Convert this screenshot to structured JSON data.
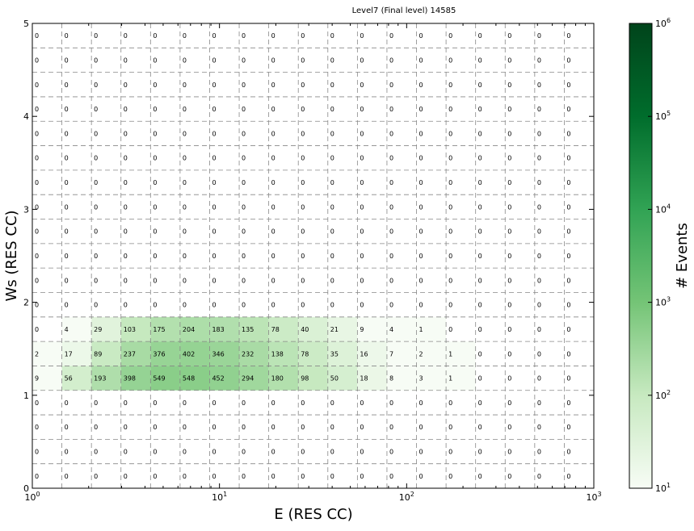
{
  "chart_data": {
    "type": "heatmap",
    "title": "Level7 (Final level) 14585",
    "xlabel": "E (RES CC)",
    "ylabel": "Ws (RES CC)",
    "xscale": "log",
    "xlim": [
      1,
      1000
    ],
    "ylim": [
      0,
      5
    ],
    "x_ticks": [
      {
        "value": 1,
        "base": "10",
        "exp": "0"
      },
      {
        "value": 10,
        "base": "10",
        "exp": "1"
      },
      {
        "value": 100,
        "base": "10",
        "exp": "2"
      },
      {
        "value": 1000,
        "base": "10",
        "exp": "3"
      }
    ],
    "y_ticks": [
      "0",
      "1",
      "2",
      "3",
      "4",
      "5"
    ],
    "grid": true,
    "colorbar": {
      "label": "# Events",
      "scale": "log",
      "range": [
        10,
        1000000
      ],
      "ticks": [
        {
          "value": 10,
          "base": "10",
          "exp": "1"
        },
        {
          "value": 100,
          "base": "10",
          "exp": "2"
        },
        {
          "value": 1000,
          "base": "10",
          "exp": "3"
        },
        {
          "value": 10000,
          "base": "10",
          "exp": "4"
        },
        {
          "value": 100000,
          "base": "10",
          "exp": "5"
        },
        {
          "value": 1000000,
          "base": "10",
          "exp": "6"
        }
      ],
      "colors": [
        "#f7fcf5",
        "#c7e9c0",
        "#74c476",
        "#31a354",
        "#006d2c",
        "#00441b"
      ]
    },
    "nx": 19,
    "ny": 19,
    "cells": [
      [
        9,
        56,
        193,
        398,
        549,
        548,
        452,
        294,
        180,
        98,
        50,
        18,
        8,
        3,
        1,
        0,
        0,
        0,
        0
      ],
      [
        2,
        17,
        89,
        237,
        376,
        402,
        346,
        232,
        138,
        78,
        35,
        16,
        7,
        2,
        1,
        0,
        0,
        0,
        0
      ],
      [
        0,
        4,
        29,
        103,
        175,
        204,
        183,
        135,
        78,
        40,
        21,
        9,
        4,
        1,
        0,
        0,
        0,
        0,
        0
      ]
    ],
    "cell_row_offset": 4
  }
}
